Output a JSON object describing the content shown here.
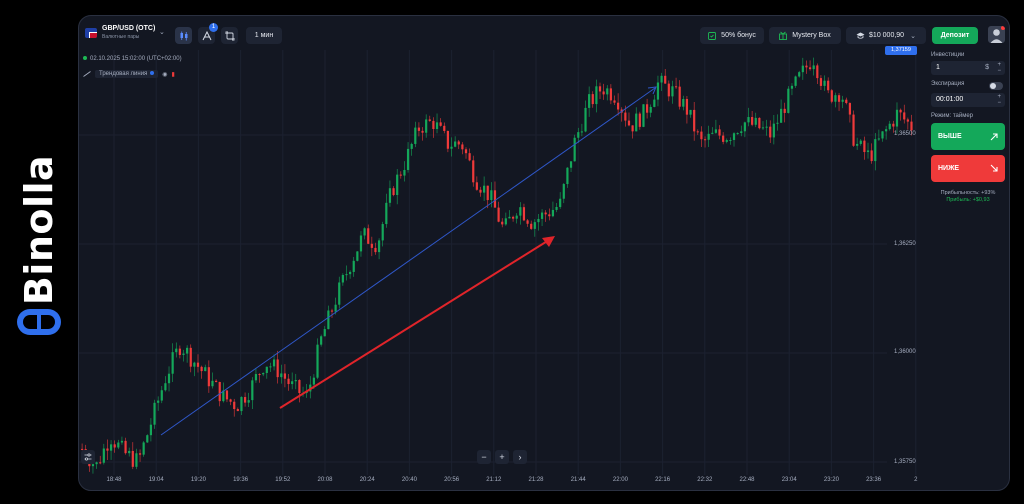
{
  "brand": {
    "name": "Binolla"
  },
  "topbar": {
    "pair_name": "GBP/USD (OTC)",
    "pair_sub": "Валютные пары",
    "indicator_badge": "1",
    "timeframe": "1 мин",
    "bonus_label": "50% бонус",
    "mystery_label": "Mystery Box",
    "balance": "$10 000,90",
    "deposit_label": "Депозит"
  },
  "chart_info": {
    "datetime": "02.10.2025 15:02:00 (UTC+02:00)",
    "drawing_tool": "Трендовая линия"
  },
  "price_axis": {
    "current_price": "1,37159",
    "ticks": [
      "1,36500",
      "1,36250",
      "1,36000",
      "1,35750"
    ]
  },
  "time_axis": {
    "ticks": [
      "18:48",
      "19:04",
      "19:20",
      "19:36",
      "19:52",
      "20:08",
      "20:24",
      "20:40",
      "20:56",
      "21:12",
      "21:28",
      "21:44",
      "22:00",
      "22:16",
      "22:32",
      "22:48",
      "23:04",
      "23:20",
      "23:36",
      "2"
    ]
  },
  "zoom": {
    "minus": "−",
    "plus": "+",
    "next": "›"
  },
  "panel": {
    "investment_label": "Инвестиции",
    "investment_value": "1",
    "currency": "$",
    "expiration_label": "Экспирация",
    "expiration_value": "00:01:00",
    "mode_label": "Режим: таймер",
    "up_label": "ВЫШЕ",
    "down_label": "НИЖЕ",
    "profitability": "Прибыльность: +93%",
    "profit": "Прибыль: +$0,93"
  },
  "colors": {
    "up": "#14a85a",
    "down": "#ef3a3a",
    "accent": "#2f6fed",
    "bg": "#131722"
  },
  "chart_data": {
    "type": "candlestick",
    "series_path": [
      1.3578,
      1.3574,
      1.3581,
      1.3577,
      1.3575,
      1.3585,
      1.3595,
      1.3602,
      1.3598,
      1.3594,
      1.359,
      1.3588,
      1.3592,
      1.3598,
      1.3596,
      1.3592,
      1.359,
      1.3603,
      1.3612,
      1.362,
      1.3627,
      1.3625,
      1.3637,
      1.3644,
      1.3652,
      1.3653,
      1.3648,
      1.3648,
      1.364,
      1.3636,
      1.3628,
      1.3634,
      1.363,
      1.3632,
      1.3634,
      1.3648,
      1.3657,
      1.3661,
      1.3659,
      1.3652,
      1.3655,
      1.3662,
      1.366,
      1.3656,
      1.3648,
      1.365,
      1.365,
      1.3653,
      1.3652,
      1.365,
      1.3657,
      1.3663,
      1.3668,
      1.3659,
      1.366,
      1.3648,
      1.3645,
      1.365,
      1.3655,
      1.3652
    ]
  }
}
